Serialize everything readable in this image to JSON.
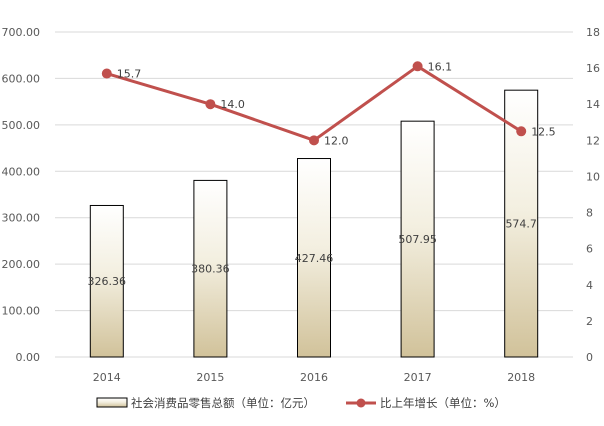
{
  "chart_data": {
    "type": "bar+line",
    "title": "",
    "categories": [
      "2014",
      "2015",
      "2016",
      "2017",
      "2018"
    ],
    "series": [
      {
        "name": "社会消费品零售总额（单位：亿元）",
        "type": "bar",
        "axis": "left",
        "values": [
          326.36,
          380.36,
          427.46,
          507.95,
          574.7
        ],
        "labels": [
          "326.36",
          "380.36",
          "427.46",
          "507.95",
          "574.7"
        ],
        "colors": {
          "top": "#ffffff",
          "bottom": "#d1c29a",
          "border": "#000000"
        }
      },
      {
        "name": "比上年增长（单位：%）",
        "type": "line",
        "axis": "right",
        "values": [
          15.7,
          14.0,
          12.0,
          16.1,
          12.5
        ],
        "labels": [
          "15.7",
          "14.0",
          "12.0",
          "16.1",
          "12.5"
        ],
        "color": "#c0504d"
      }
    ],
    "y_left": {
      "min": 0,
      "max": 700,
      "step": 100,
      "tick_labels": [
        "0.00",
        "100.00",
        "200.00",
        "300.00",
        "400.00",
        "500.00",
        "600.00",
        "700.00"
      ]
    },
    "y_right": {
      "min": 0,
      "max": 18,
      "step": 2,
      "tick_labels": [
        "0",
        "2",
        "4",
        "6",
        "8",
        "10",
        "12",
        "14",
        "16",
        "18"
      ]
    },
    "grid": true,
    "legend_position": "bottom"
  }
}
